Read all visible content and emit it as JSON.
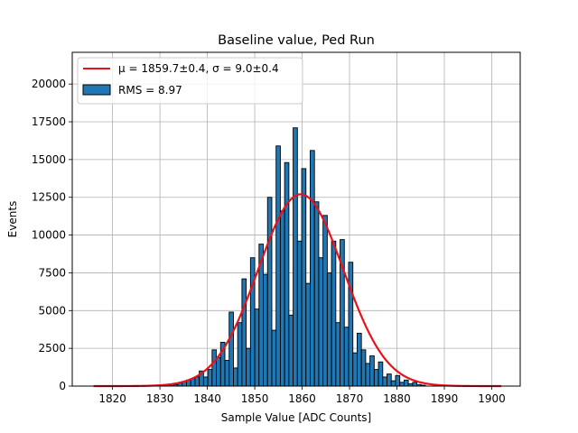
{
  "chart_data": {
    "type": "bar",
    "title": "Baseline value, Ped Run",
    "xlabel": "Sample Value [ADC Counts]",
    "ylabel": "Events",
    "xlim": [
      1811.5,
      1906
    ],
    "ylim": [
      0,
      22100
    ],
    "xticks": [
      1820,
      1830,
      1840,
      1850,
      1860,
      1870,
      1880,
      1890,
      1900
    ],
    "yticks": [
      0,
      2500,
      5000,
      7500,
      10000,
      12500,
      15000,
      17500,
      20000
    ],
    "grid": true,
    "legend_position": "top-left",
    "colors": {
      "bars": "#1f77b4",
      "bar_edge": "#000000",
      "fit": "#e8121c",
      "grid": "#b0b0b0"
    },
    "histogram": {
      "name": "RMS = 8.97",
      "bin_width": 0.9,
      "bin_start": 1832.0,
      "values": [
        50,
        100,
        200,
        300,
        400,
        500,
        600,
        1000,
        600,
        1100,
        2400,
        1900,
        2900,
        1700,
        4900,
        1200,
        4200,
        7100,
        2500,
        8500,
        5100,
        9400,
        7400,
        12500,
        3700,
        15900,
        11600,
        14800,
        4700,
        17100,
        9600,
        14400,
        6800,
        15600,
        12200,
        8500,
        11300,
        7500,
        9600,
        4200,
        9700,
        3900,
        8200,
        2200,
        3500,
        2400,
        1500,
        2000,
        1100,
        1600,
        600,
        800,
        350,
        700,
        250,
        400,
        150,
        250,
        100,
        60
      ]
    },
    "fit": {
      "name": "μ = 1859.7±0.4, σ = 9.0±0.4",
      "mu": 1859.7,
      "sigma": 9.0,
      "amplitude": 12700,
      "x_range": [
        1816,
        1902
      ]
    }
  }
}
